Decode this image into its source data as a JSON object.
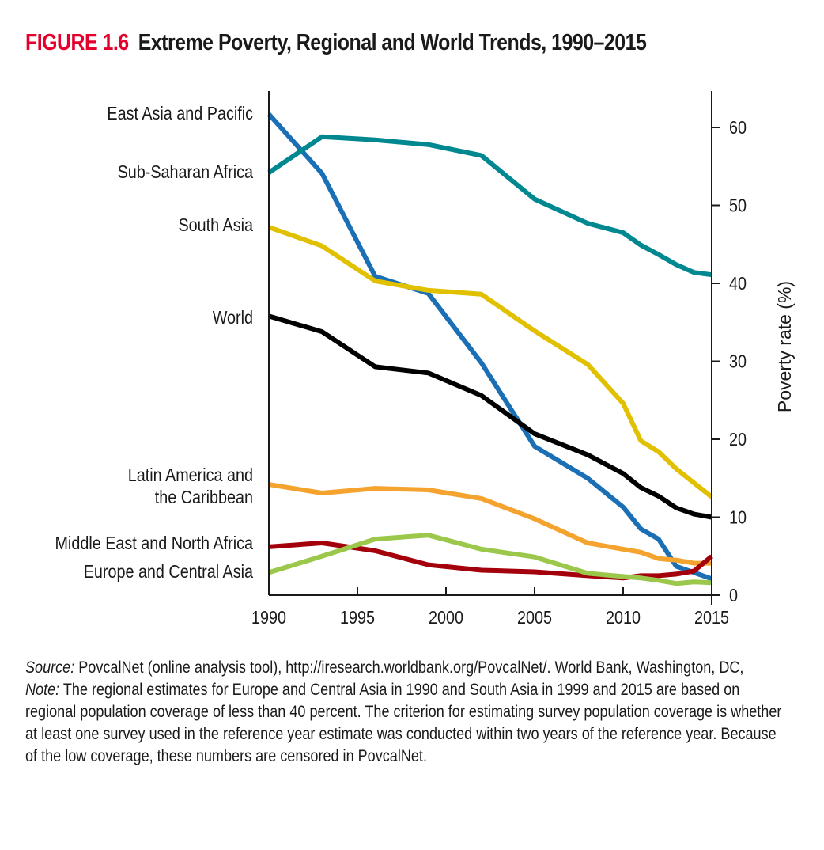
{
  "title": {
    "figure_label": "FIGURE 1.6",
    "text": "Extreme Poverty, Regional and World Trends, 1990–2015"
  },
  "colors": {
    "figure_label": "#e4002b",
    "axis": "#1a1a1a"
  },
  "chart_data": {
    "type": "line",
    "title": "Extreme Poverty, Regional and World Trends, 1990–2015",
    "xlabel": "",
    "ylabel": "Poverty rate (%)",
    "xlim": [
      1990,
      2015
    ],
    "ylim": [
      0,
      65
    ],
    "x_ticks": [
      1990,
      1995,
      2000,
      2005,
      2010,
      2015
    ],
    "y_ticks": [
      0,
      10,
      20,
      30,
      40,
      50,
      60
    ],
    "y_axis_side": "right",
    "grid": false,
    "legend": "left-labels",
    "x": [
      1990,
      1993,
      1996,
      1999,
      2002,
      2005,
      2008,
      2010,
      2011,
      2012,
      2013,
      2014,
      2015
    ],
    "series": [
      {
        "name": "East Asia and Pacific",
        "label_lines": [
          "East Asia and Pacific"
        ],
        "color": "#1a6fb5",
        "values": [
          61.7,
          54.1,
          40.9,
          38.7,
          29.8,
          19.1,
          15.0,
          11.3,
          8.5,
          7.2,
          3.7,
          2.9,
          2.1
        ]
      },
      {
        "name": "Sub-Saharan Africa",
        "label_lines": [
          "Sub-Saharan Africa"
        ],
        "color": "#008891",
        "values": [
          54.2,
          58.8,
          58.4,
          57.8,
          56.4,
          50.8,
          47.7,
          46.5,
          44.9,
          43.7,
          42.4,
          41.4,
          41.1
        ]
      },
      {
        "name": "South Asia",
        "label_lines": [
          "South Asia"
        ],
        "color": "#e1c000",
        "values": [
          47.2,
          44.8,
          40.3,
          39.1,
          38.6,
          33.9,
          29.6,
          24.6,
          19.8,
          18.4,
          16.2,
          14.4,
          12.6
        ]
      },
      {
        "name": "World",
        "label_lines": [
          "World"
        ],
        "color": "#000000",
        "values": [
          35.8,
          33.8,
          29.3,
          28.5,
          25.6,
          20.7,
          18.0,
          15.6,
          13.8,
          12.7,
          11.2,
          10.4,
          10.0
        ]
      },
      {
        "name": "Latin America and the Caribbean",
        "label_lines": [
          "Latin America and",
          "the Caribbean"
        ],
        "color": "#f5a32f",
        "values": [
          14.2,
          13.1,
          13.7,
          13.5,
          12.4,
          9.8,
          6.7,
          5.9,
          5.5,
          4.7,
          4.5,
          4.1,
          4.1
        ]
      },
      {
        "name": "Middle East and North Africa",
        "label_lines": [
          "Middle East and North Africa"
        ],
        "color": "#a3000b",
        "values": [
          6.2,
          6.7,
          5.7,
          3.9,
          3.2,
          3.0,
          2.5,
          2.2,
          2.5,
          2.5,
          2.7,
          3.1,
          5.0
        ]
      },
      {
        "name": "Europe and Central Asia",
        "label_lines": [
          "Europe and Central Asia"
        ],
        "color": "#9bc84a",
        "values": [
          2.9,
          5.0,
          7.2,
          7.7,
          5.9,
          4.9,
          2.8,
          2.4,
          2.2,
          1.9,
          1.5,
          1.7,
          1.6
        ]
      }
    ]
  },
  "footer": {
    "source_label": "Source:",
    "source_text": " PovcalNet (online analysis tool), http://iresearch.worldbank.org/PovcalNet/. World Bank, Washington, DC,",
    "note_label": "Note:",
    "note_text": " The regional estimates for Europe and Central Asia in 1990 and South Asia in 1999 and 2015 are based on  regional population coverage of less than 40 percent. The criterion for estimating survey population coverage is whether at least one survey used in the reference year estimate was conducted within two years of the reference year. Because of the low coverage, these numbers are censored in PovcalNet."
  }
}
